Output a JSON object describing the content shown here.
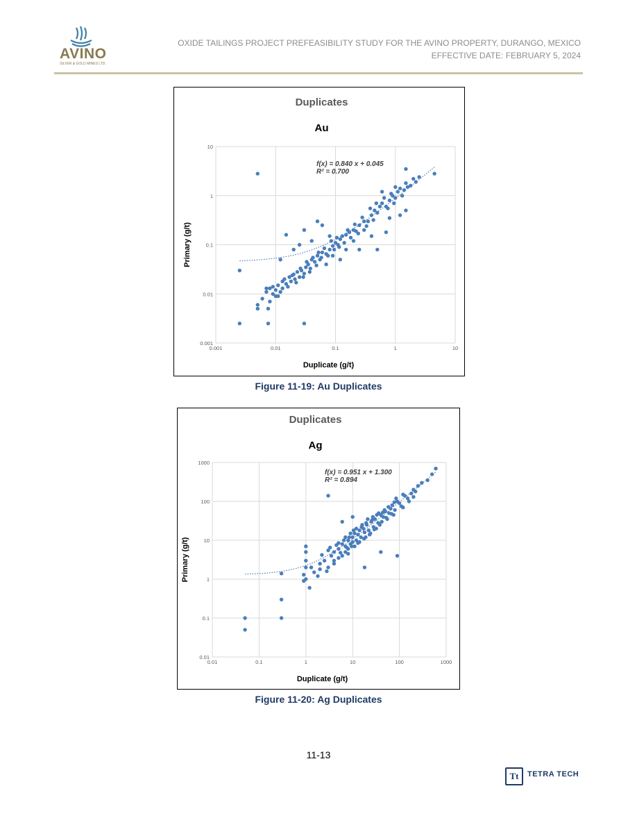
{
  "header": {
    "logo_text": "AVINO",
    "logo_subtext": "SILVER & GOLD MINES LTD.",
    "title_line": "OXIDE TAILINGS PROJECT PREFEASIBILITY STUDY FOR THE AVINO PROPERTY, DURANGO, MEXICO",
    "date_line": "EFFECTIVE DATE: FEBRUARY 5, 2024"
  },
  "figures": [
    {
      "caption": "Figure 11-19: Au Duplicates"
    },
    {
      "caption": "Figure 11-20: Ag Duplicates"
    }
  ],
  "footer": {
    "page_number": "11-13",
    "company": "TETRA TECH",
    "company_mark": "Tt"
  },
  "colors": {
    "point": "#4a7ebb",
    "grid": "#d9d9d9",
    "caption": "#1f3a66",
    "rule": "#cbc3a3"
  },
  "chart_data": [
    {
      "type": "scatter",
      "title": "Duplicates",
      "subtitle": "Au",
      "xlabel": "Duplicate (g/t)",
      "ylabel": "Primary (g/t)",
      "xscale": "log",
      "yscale": "log",
      "xlim": [
        0.001,
        10
      ],
      "ylim": [
        0.001,
        10
      ],
      "xticks": [
        "0.001",
        "0.01",
        "0.1",
        "1",
        "10"
      ],
      "yticks": [
        "0.001",
        "0.01",
        "0.1",
        "1",
        "10"
      ],
      "grid": true,
      "annotation": [
        "f(x) = 0.840 x + 0.045",
        "R² = 0.700"
      ],
      "trendline": {
        "slope": 0.84,
        "intercept": 0.045,
        "x_range": [
          0.0025,
          4.5
        ]
      },
      "points": [
        [
          0.005,
          2.8
        ],
        [
          0.0025,
          0.0025
        ],
        [
          0.0075,
          0.0025
        ],
        [
          0.03,
          0.0025
        ],
        [
          0.0025,
          0.03
        ],
        [
          0.005,
          0.005
        ],
        [
          0.005,
          0.006
        ],
        [
          0.0075,
          0.005
        ],
        [
          0.006,
          0.008
        ],
        [
          0.007,
          0.013
        ],
        [
          0.008,
          0.013
        ],
        [
          0.008,
          0.007
        ],
        [
          0.009,
          0.01
        ],
        [
          0.01,
          0.009
        ],
        [
          0.01,
          0.012
        ],
        [
          0.011,
          0.015
        ],
        [
          0.012,
          0.011
        ],
        [
          0.013,
          0.013
        ],
        [
          0.014,
          0.02
        ],
        [
          0.015,
          0.016
        ],
        [
          0.017,
          0.022
        ],
        [
          0.018,
          0.018
        ],
        [
          0.02,
          0.025
        ],
        [
          0.021,
          0.02
        ],
        [
          0.023,
          0.028
        ],
        [
          0.025,
          0.022
        ],
        [
          0.027,
          0.03
        ],
        [
          0.03,
          0.026
        ],
        [
          0.032,
          0.035
        ],
        [
          0.035,
          0.04
        ],
        [
          0.038,
          0.033
        ],
        [
          0.04,
          0.05
        ],
        [
          0.045,
          0.045
        ],
        [
          0.05,
          0.06
        ],
        [
          0.055,
          0.05
        ],
        [
          0.06,
          0.07
        ],
        [
          0.07,
          0.065
        ],
        [
          0.08,
          0.08
        ],
        [
          0.09,
          0.095
        ],
        [
          0.1,
          0.11
        ],
        [
          0.11,
          0.1
        ],
        [
          0.12,
          0.13
        ],
        [
          0.13,
          0.15
        ],
        [
          0.15,
          0.16
        ],
        [
          0.17,
          0.18
        ],
        [
          0.2,
          0.2
        ],
        [
          0.22,
          0.19
        ],
        [
          0.25,
          0.25
        ],
        [
          0.3,
          0.2
        ],
        [
          0.35,
          0.3
        ],
        [
          0.4,
          0.4
        ],
        [
          0.45,
          0.5
        ],
        [
          0.5,
          0.45
        ],
        [
          0.6,
          0.7
        ],
        [
          0.7,
          0.6
        ],
        [
          0.8,
          0.8
        ],
        [
          0.9,
          1.0
        ],
        [
          1.0,
          0.9
        ],
        [
          1.1,
          1.2
        ],
        [
          1.2,
          1.4
        ],
        [
          1.4,
          1.3
        ],
        [
          1.5,
          1.8
        ],
        [
          1.8,
          1.6
        ],
        [
          2.0,
          2.2
        ],
        [
          2.5,
          2.4
        ],
        [
          1.5,
          3.5
        ],
        [
          4.5,
          2.8
        ],
        [
          0.012,
          0.05
        ],
        [
          0.015,
          0.16
        ],
        [
          0.02,
          0.08
        ],
        [
          0.025,
          0.1
        ],
        [
          0.03,
          0.2
        ],
        [
          0.04,
          0.12
        ],
        [
          0.05,
          0.3
        ],
        [
          0.06,
          0.25
        ],
        [
          0.07,
          0.04
        ],
        [
          0.08,
          0.15
        ],
        [
          0.09,
          0.06
        ],
        [
          0.12,
          0.05
        ],
        [
          0.15,
          0.08
        ],
        [
          0.2,
          0.12
        ],
        [
          0.25,
          0.08
        ],
        [
          0.3,
          0.3
        ],
        [
          0.4,
          0.15
        ],
        [
          0.5,
          0.08
        ],
        [
          0.6,
          1.2
        ],
        [
          0.7,
          0.18
        ],
        [
          0.8,
          0.35
        ],
        [
          1.0,
          1.5
        ],
        [
          1.2,
          0.4
        ],
        [
          1.5,
          0.5
        ],
        [
          0.007,
          0.011
        ],
        [
          0.009,
          0.014
        ],
        [
          0.011,
          0.009
        ],
        [
          0.013,
          0.018
        ],
        [
          0.016,
          0.014
        ],
        [
          0.019,
          0.024
        ],
        [
          0.022,
          0.017
        ],
        [
          0.026,
          0.033
        ],
        [
          0.029,
          0.022
        ],
        [
          0.033,
          0.045
        ],
        [
          0.037,
          0.028
        ],
        [
          0.042,
          0.055
        ],
        [
          0.048,
          0.038
        ],
        [
          0.052,
          0.07
        ],
        [
          0.058,
          0.055
        ],
        [
          0.065,
          0.085
        ],
        [
          0.075,
          0.06
        ],
        [
          0.085,
          0.12
        ],
        [
          0.095,
          0.08
        ],
        [
          0.105,
          0.14
        ],
        [
          0.115,
          0.09
        ],
        [
          0.14,
          0.11
        ],
        [
          0.16,
          0.2
        ],
        [
          0.18,
          0.14
        ],
        [
          0.21,
          0.26
        ],
        [
          0.24,
          0.17
        ],
        [
          0.28,
          0.36
        ],
        [
          0.33,
          0.24
        ],
        [
          0.38,
          0.55
        ],
        [
          0.43,
          0.32
        ],
        [
          0.48,
          0.7
        ],
        [
          0.55,
          0.6
        ],
        [
          0.65,
          0.9
        ],
        [
          0.75,
          0.55
        ],
        [
          0.85,
          1.1
        ],
        [
          0.95,
          0.7
        ],
        [
          1.3,
          1.0
        ],
        [
          1.6,
          1.5
        ],
        [
          2.2,
          1.9
        ]
      ]
    },
    {
      "type": "scatter",
      "title": "Duplicates",
      "subtitle": "Ag",
      "xlabel": "Duplicate (g/t)",
      "ylabel": "Primary (g/t)",
      "xscale": "log",
      "yscale": "log",
      "xlim": [
        0.01,
        1000
      ],
      "ylim": [
        0.01,
        1000
      ],
      "xticks": [
        "0.01",
        "0.1",
        "1",
        "10",
        "100",
        "1000"
      ],
      "yticks": [
        "0.01",
        "0.1",
        "1",
        "10",
        "100",
        "1000"
      ],
      "grid": true,
      "annotation": [
        "f(x) = 0.951 x + 1.300",
        "R² = 0.894"
      ],
      "trendline": {
        "slope": 0.951,
        "intercept": 1.3,
        "x_range": [
          0.05,
          600
        ]
      },
      "points": [
        [
          0.05,
          0.1
        ],
        [
          0.05,
          0.05
        ],
        [
          0.3,
          0.1
        ],
        [
          0.3,
          0.3
        ],
        [
          0.3,
          1.4
        ],
        [
          1,
          7
        ],
        [
          1,
          5
        ],
        [
          1,
          3
        ],
        [
          1,
          2
        ],
        [
          1,
          1
        ],
        [
          0.9,
          0.9
        ],
        [
          0.9,
          1.3
        ],
        [
          1.2,
          0.6
        ],
        [
          1.3,
          2
        ],
        [
          1.5,
          1.5
        ],
        [
          1.8,
          1.2
        ],
        [
          2,
          2.5
        ],
        [
          2,
          1.8
        ],
        [
          2.5,
          3
        ],
        [
          3,
          2
        ],
        [
          3,
          140
        ],
        [
          3.5,
          4
        ],
        [
          4,
          2.5
        ],
        [
          4,
          5
        ],
        [
          5,
          6
        ],
        [
          5,
          3.5
        ],
        [
          6,
          8
        ],
        [
          6,
          4
        ],
        [
          7,
          7
        ],
        [
          7,
          5
        ],
        [
          8,
          10
        ],
        [
          8,
          6
        ],
        [
          9,
          8
        ],
        [
          10,
          12
        ],
        [
          10,
          9
        ],
        [
          11,
          15
        ],
        [
          12,
          10
        ],
        [
          13,
          14
        ],
        [
          14,
          18
        ],
        [
          15,
          12
        ],
        [
          17,
          20
        ],
        [
          18,
          16
        ],
        [
          20,
          25
        ],
        [
          22,
          18
        ],
        [
          25,
          30
        ],
        [
          28,
          22
        ],
        [
          30,
          35
        ],
        [
          35,
          28
        ],
        [
          40,
          45
        ],
        [
          45,
          40
        ],
        [
          50,
          55
        ],
        [
          60,
          50
        ],
        [
          70,
          80
        ],
        [
          80,
          60
        ],
        [
          90,
          100
        ],
        [
          100,
          90
        ],
        [
          120,
          150
        ],
        [
          150,
          120
        ],
        [
          200,
          200
        ],
        [
          250,
          250
        ],
        [
          300,
          300
        ],
        [
          400,
          350
        ],
        [
          500,
          500
        ],
        [
          600,
          700
        ],
        [
          18,
          2
        ],
        [
          40,
          5
        ],
        [
          90,
          4
        ],
        [
          120,
          70
        ],
        [
          200,
          130
        ],
        [
          6,
          30
        ],
        [
          10,
          40
        ],
        [
          3,
          5.5
        ],
        [
          4,
          3
        ],
        [
          5,
          8.5
        ],
        [
          7,
          12
        ],
        [
          8,
          4.5
        ],
        [
          9,
          15
        ],
        [
          11,
          7
        ],
        [
          12,
          20
        ],
        [
          14,
          9
        ],
        [
          16,
          25
        ],
        [
          19,
          12
        ],
        [
          21,
          35
        ],
        [
          24,
          15
        ],
        [
          27,
          40
        ],
        [
          32,
          20
        ],
        [
          36,
          50
        ],
        [
          42,
          30
        ],
        [
          48,
          60
        ],
        [
          55,
          35
        ],
        [
          65,
          65
        ],
        [
          75,
          45
        ],
        [
          85,
          120
        ],
        [
          110,
          75
        ],
        [
          130,
          140
        ],
        [
          160,
          100
        ],
        [
          180,
          160
        ],
        [
          220,
          180
        ],
        [
          2.2,
          4.2
        ],
        [
          2.8,
          1.6
        ],
        [
          3.3,
          6.5
        ],
        [
          4.5,
          7.5
        ],
        [
          5.5,
          4.8
        ],
        [
          6.5,
          10
        ],
        [
          7.5,
          6.5
        ],
        [
          8.5,
          12
        ],
        [
          9.5,
          7
        ],
        [
          10.5,
          18
        ],
        [
          13,
          8.5
        ],
        [
          15.5,
          22
        ],
        [
          17.5,
          11
        ],
        [
          19.5,
          28
        ],
        [
          23,
          14
        ],
        [
          26,
          33
        ],
        [
          29,
          19
        ],
        [
          33,
          45
        ],
        [
          38,
          25
        ],
        [
          44,
          52
        ],
        [
          52,
          38
        ],
        [
          58,
          72
        ],
        [
          68,
          48
        ],
        [
          78,
          95
        ]
      ]
    }
  ]
}
